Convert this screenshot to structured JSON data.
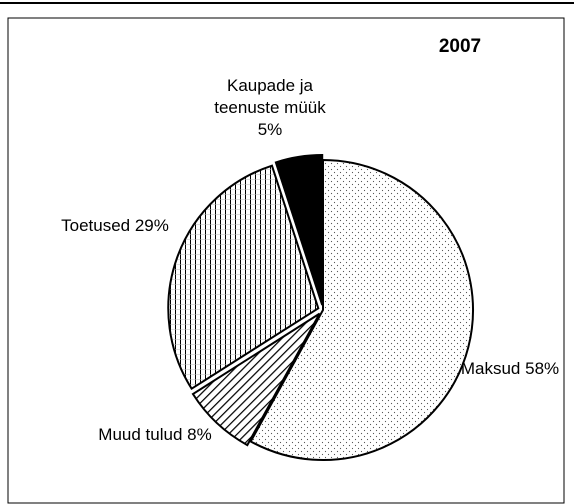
{
  "chart_data": {
    "type": "pie",
    "title": "2007",
    "categories": [
      "Maksud",
      "Muud tulud",
      "Toetused",
      "Kaupade ja teenuste müük"
    ],
    "values": [
      58,
      8,
      29,
      5
    ],
    "value_labels": [
      "58%",
      "8%",
      "29%",
      "5%"
    ]
  }
}
